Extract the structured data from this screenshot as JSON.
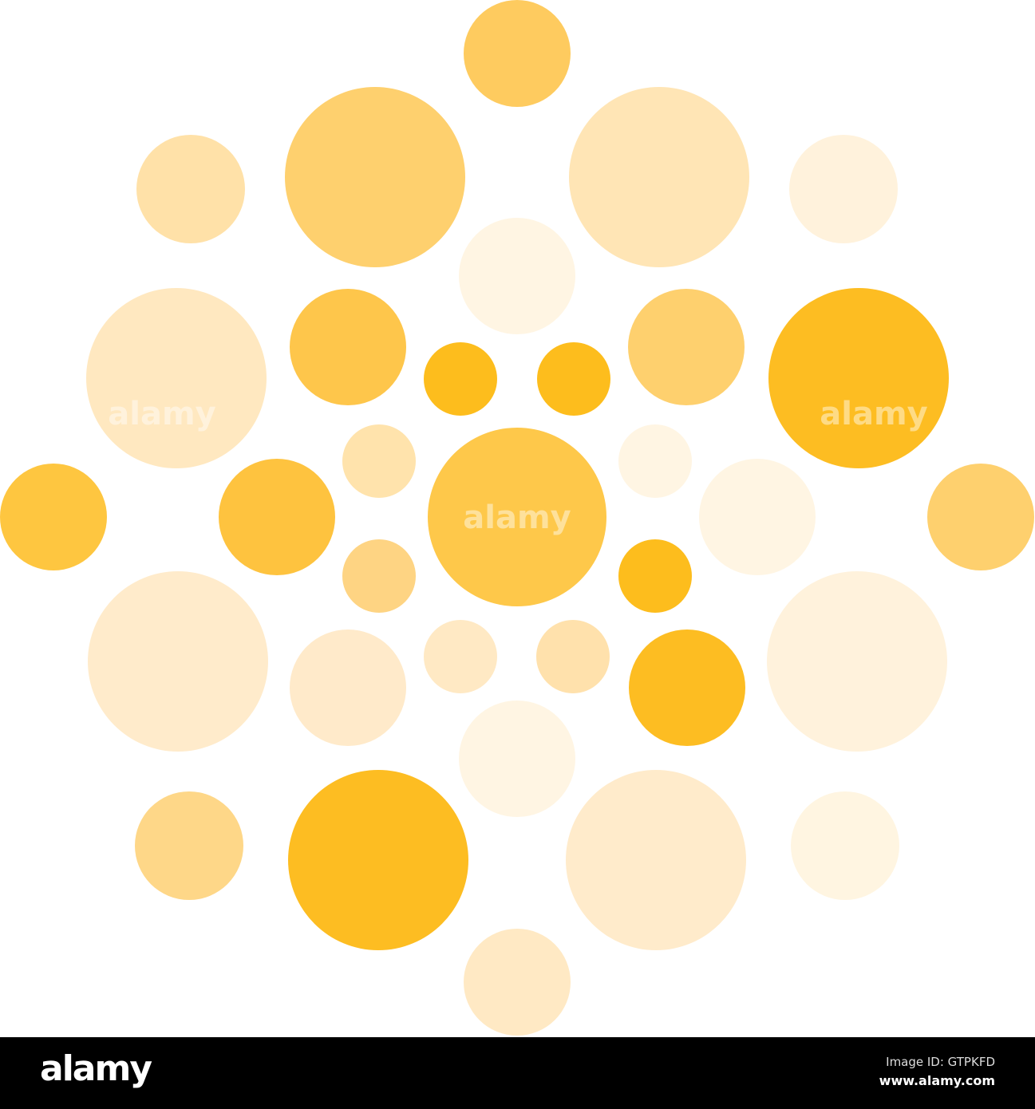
{
  "palette": {
    "background": "#ffffff",
    "circle_colors": [
      "#FECB5F",
      "#FED06E",
      "#FFE5B5",
      "#FFE1A8",
      "#FFF2DC",
      "#FFF5E3",
      "#FFE8C0",
      "#FEC64B",
      "#FDBD1D",
      "#FDBD1D",
      "#FED06E",
      "#FDBD22",
      "#FEC640",
      "#FEC33F",
      "#FFE3AC",
      "#FEC84A",
      "#FFF5E3",
      "#FFF5E3",
      "#FED06E",
      "#FED483",
      "#FDBD1D",
      "#FFEBCB",
      "#FFEACA",
      "#FFE9C4",
      "#FFE1AC",
      "#FDBD22",
      "#FFF2DC",
      "#FFF5E3",
      "#FED788",
      "#FDBD22",
      "#FFEBCB",
      "#FFF5E1",
      "#FFE9C4"
    ]
  },
  "watermark": "alamy",
  "footer": {
    "logo": "alamy",
    "image_id": "Image ID: GTPKFD",
    "url": "www.alamy.com"
  }
}
